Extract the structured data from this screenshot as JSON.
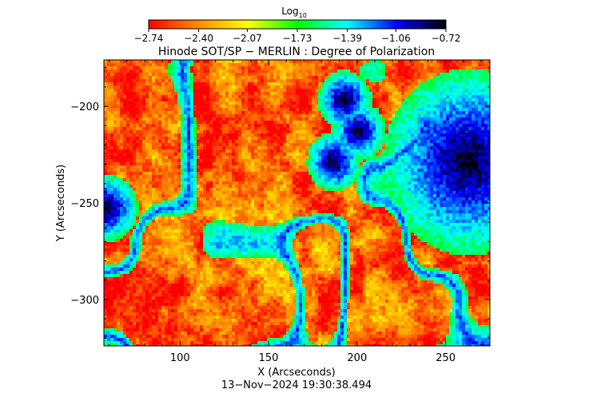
{
  "chart_data": {
    "type": "heatmap",
    "title": "Hinode SOT/SP − MERLIN : Degree of Polarization",
    "xlabel": "X (Arcseconds)",
    "ylabel": "Y (Arcseconds)",
    "xlim": [
      57,
      275
    ],
    "ylim": [
      -324,
      -176
    ],
    "x_ticks": [
      {
        "value": 100,
        "label": "100"
      },
      {
        "value": 150,
        "label": "150"
      },
      {
        "value": 200,
        "label": "200"
      },
      {
        "value": 250,
        "label": "250"
      }
    ],
    "y_ticks": [
      {
        "value": -200,
        "label": "−200"
      },
      {
        "value": -250,
        "label": "−250"
      },
      {
        "value": -300,
        "label": "−300"
      }
    ],
    "colorbar": {
      "label_main": "Log",
      "label_sub": "10",
      "range": [
        -2.74,
        -0.72
      ],
      "colormap": [
        "#ff0000",
        "#ff8c00",
        "#ffff00",
        "#00ff00",
        "#00ffff",
        "#0000ff",
        "#000000"
      ],
      "ticks": [
        {
          "value": -2.74,
          "label": "−2.74"
        },
        {
          "value": -2.4,
          "label": "−2.40"
        },
        {
          "value": -2.07,
          "label": "−2.07"
        },
        {
          "value": -1.73,
          "label": "−1.73"
        },
        {
          "value": -1.39,
          "label": "−1.39"
        },
        {
          "value": -1.06,
          "label": "−1.06"
        },
        {
          "value": -0.72,
          "label": "−0.72"
        }
      ]
    },
    "features": [
      {
        "kind": "strong-polarization",
        "x": 262,
        "y": -228
      },
      {
        "kind": "strong-polarization",
        "x": 192,
        "y": -196
      },
      {
        "kind": "strong-polarization",
        "x": 58,
        "y": -252
      },
      {
        "kind": "strong-polarization",
        "x": 200,
        "y": -212
      },
      {
        "kind": "strong-polarization",
        "x": 186,
        "y": -228
      }
    ]
  },
  "timestamp": "13−Nov−2024 19:30:38.494"
}
